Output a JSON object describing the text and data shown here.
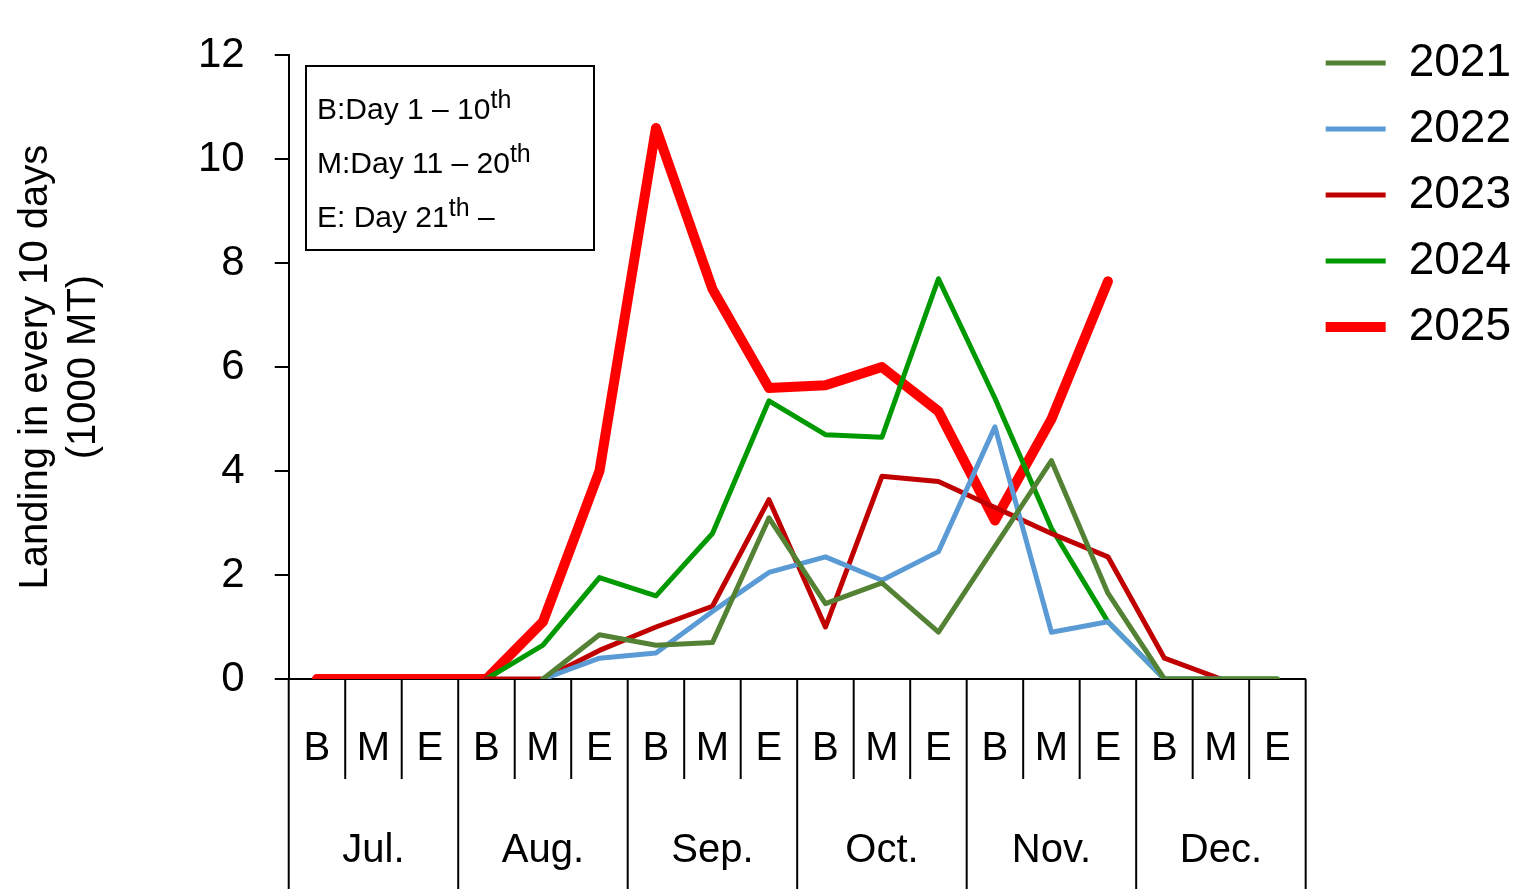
{
  "chart_data": {
    "type": "line",
    "ylabel": "Landing in every 10 days\n(1000 MT)",
    "categories": [
      "B",
      "M",
      "E",
      "B",
      "M",
      "E",
      "B",
      "M",
      "E",
      "B",
      "M",
      "E",
      "B",
      "M",
      "E",
      "B",
      "M",
      "E"
    ],
    "series": [
      {
        "name": "2021",
        "color": "#548235",
        "values": [
          null,
          null,
          null,
          null,
          0,
          0.85,
          0.65,
          0.7,
          3.1,
          1.45,
          1.85,
          0.9,
          2.55,
          4.2,
          1.65,
          0,
          0,
          0
        ]
      },
      {
        "name": "2022",
        "color": "#5b9bd5",
        "values": [
          null,
          null,
          null,
          null,
          0,
          0.4,
          0.5,
          1.3,
          2.05,
          2.35,
          1.9,
          2.45,
          4.85,
          0.9,
          1.1,
          0,
          0,
          null
        ]
      },
      {
        "name": "2023",
        "color": "#c00000",
        "values": [
          null,
          null,
          null,
          0,
          0,
          0.55,
          1.0,
          1.4,
          3.45,
          1.0,
          3.9,
          3.8,
          3.3,
          2.8,
          2.35,
          0.4,
          0,
          null
        ]
      },
      {
        "name": "2024",
        "color": "#009900",
        "values": [
          null,
          null,
          null,
          0,
          0.65,
          1.95,
          1.6,
          2.8,
          5.35,
          4.7,
          4.65,
          7.7,
          5.4,
          2.9,
          1.1,
          0,
          0,
          0
        ]
      },
      {
        "name": "2025",
        "color": "#ff0000",
        "values": [
          0,
          0,
          0,
          0,
          1.1,
          4.0,
          10.6,
          7.5,
          5.6,
          5.65,
          6.0,
          5.15,
          3.05,
          5.0,
          7.65,
          null,
          null,
          null
        ]
      }
    ],
    "ylim": [
      0,
      12
    ],
    "yticks": [
      0,
      2,
      4,
      6,
      8,
      10,
      12
    ],
    "legend": "top right",
    "annotations": [
      "B:Day 1 – 10$^{th}$\nM:Day 11 – 20$^{th}$\nE: Day 21$^{th}$ –",
      "Jul.",
      "Aug.",
      "Sep.",
      "Oct.",
      "Nov.",
      "Dec."
    ]
  }
}
